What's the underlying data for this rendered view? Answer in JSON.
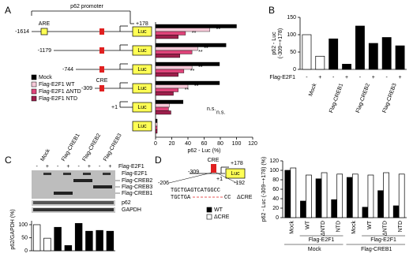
{
  "panels": {
    "a": "A",
    "b": "B",
    "c": "C",
    "d": "D"
  },
  "promoter": {
    "title": "p62 promoter",
    "end": "+178",
    "are": "ARE",
    "cre": "CRE",
    "reporter": "Luc"
  },
  "blot": {
    "lanes": [
      "Mock",
      "Flag-CREB1",
      "Flag-CREB2",
      "Flag-CREB3"
    ],
    "treatment": "Flag-E2F1",
    "signs": [
      "-",
      "+",
      "-",
      "+",
      "-",
      "+",
      "-",
      "+"
    ],
    "bands": [
      "Flag-E2F1",
      "Flag-CREB2",
      "Flag-CREB3",
      "Flag-CREB1",
      "p62",
      "GAPDH"
    ]
  },
  "cre_construct": {
    "cre": "CRE",
    "start": "-309",
    "end": "+178",
    "tss": "+1",
    "reporter": "Luc",
    "left": "-206",
    "right": "-192",
    "wt_seq": "TGCTGAGTCATGGCC",
    "del_seq": "TGCTGA",
    "del_tail": "CC"
  },
  "chart_data": [
    {
      "type": "hbar",
      "xlabel": "p62 - Luc (%)",
      "categories": [
        "-1614",
        "-1179",
        "-744",
        "-309",
        "+1",
        null
      ],
      "xlim": [
        0,
        120
      ],
      "xticks": [
        0,
        20,
        40,
        60,
        80,
        100,
        120
      ],
      "series": [
        {
          "name": "Mock",
          "color": "#000000",
          "values": [
            100,
            87,
            79,
            79,
            34,
            2
          ],
          "significance": [
            null,
            null,
            null,
            null,
            null,
            null
          ]
        },
        {
          "name": "Flag-E2F1 WT",
          "color": "#f6c9d8",
          "values": [
            67,
            52,
            45,
            40,
            17,
            2
          ],
          "significance": [
            "**",
            "**",
            "**",
            "**",
            null,
            null
          ]
        },
        {
          "name": "Flag-E2F1 ΔNTD",
          "color": "#e0457b",
          "values": [
            37,
            45,
            35,
            28,
            16,
            2
          ],
          "significance": [
            "**",
            "**",
            "**",
            "**",
            "n.s.",
            null
          ]
        },
        {
          "name": "Flag-E2F1 NTD",
          "color": "#9e1f4c",
          "values": [
            28,
            30,
            28,
            22,
            19,
            2
          ],
          "significance": [
            null,
            null,
            null,
            null,
            "n.s.",
            null
          ]
        }
      ]
    },
    {
      "type": "vbar",
      "ylabel": [
        "p62 - Luc",
        "(-309~+178)"
      ],
      "category_title": "Flag-E2F1",
      "categories": [
        "-",
        "+",
        "-",
        "+",
        "-",
        "+",
        "-",
        "+"
      ],
      "groups": [
        "Mock",
        "Flag-CREB1",
        "Flag-CREB2",
        "Flag-CREB3"
      ],
      "group_colors": [
        "#000000",
        "#e02020",
        "#000000",
        "#000000"
      ],
      "values": [
        100,
        38,
        88,
        15,
        125,
        75,
        92,
        68
      ],
      "colors": [
        "#ffffff",
        "#ffffff",
        "#000000",
        "#000000",
        "#000000",
        "#000000",
        "#000000",
        "#000000"
      ],
      "ylim": [
        0,
        150
      ],
      "yticks": [
        0,
        50,
        100,
        150
      ]
    },
    {
      "type": "vbar",
      "ylabel": [
        "p62/GAPDH (%)"
      ],
      "values": [
        100,
        48,
        90,
        20,
        105,
        75,
        78,
        75
      ],
      "colors": [
        "#ffffff",
        "#ffffff",
        "#000000",
        "#000000",
        "#000000",
        "#000000",
        "#000000",
        "#000000"
      ],
      "ylim": [
        0,
        115
      ],
      "yticks": [
        0,
        50,
        100
      ]
    },
    {
      "type": "grouped",
      "ylabel": [
        "p62 - Luc (-309~+178) (%)"
      ],
      "categories": [
        "Mock",
        "WT",
        "ΔNTD",
        "NTD",
        "Mock",
        "WT",
        "ΔNTD",
        "NTD"
      ],
      "subgroup": "Flag-E2F1",
      "groups": [
        "Mock",
        "Flag-CREB1"
      ],
      "ylim": [
        0,
        120
      ],
      "yticks": [
        0,
        20,
        40,
        60,
        80,
        100,
        120
      ],
      "series": [
        {
          "name": "WT",
          "color": "#000000",
          "values": [
            100,
            35,
            82,
            38,
            85,
            22,
            57,
            25
          ]
        },
        {
          "name": "ΔCRE",
          "color": "#ffffff",
          "values": [
            105,
            90,
            95,
            92,
            92,
            90,
            95,
            92
          ]
        }
      ]
    }
  ]
}
